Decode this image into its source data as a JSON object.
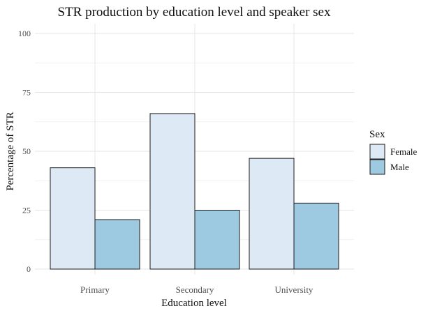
{
  "chart_data": {
    "type": "bar",
    "title": "STR production by education level and speaker sex",
    "xlabel": "Education level",
    "ylabel": "Percentage of STR",
    "categories": [
      "Primary",
      "Secondary",
      "University"
    ],
    "series": [
      {
        "name": "Female",
        "values": [
          43,
          66,
          47
        ],
        "color": "#dde9f5"
      },
      {
        "name": "Male",
        "values": [
          21,
          25,
          28
        ],
        "color": "#9ecae1"
      }
    ],
    "ylim": [
      0,
      100
    ],
    "yticks": [
      0,
      25,
      50,
      75,
      100
    ],
    "grid": true,
    "legend": {
      "title": "Sex",
      "position": "right"
    }
  }
}
